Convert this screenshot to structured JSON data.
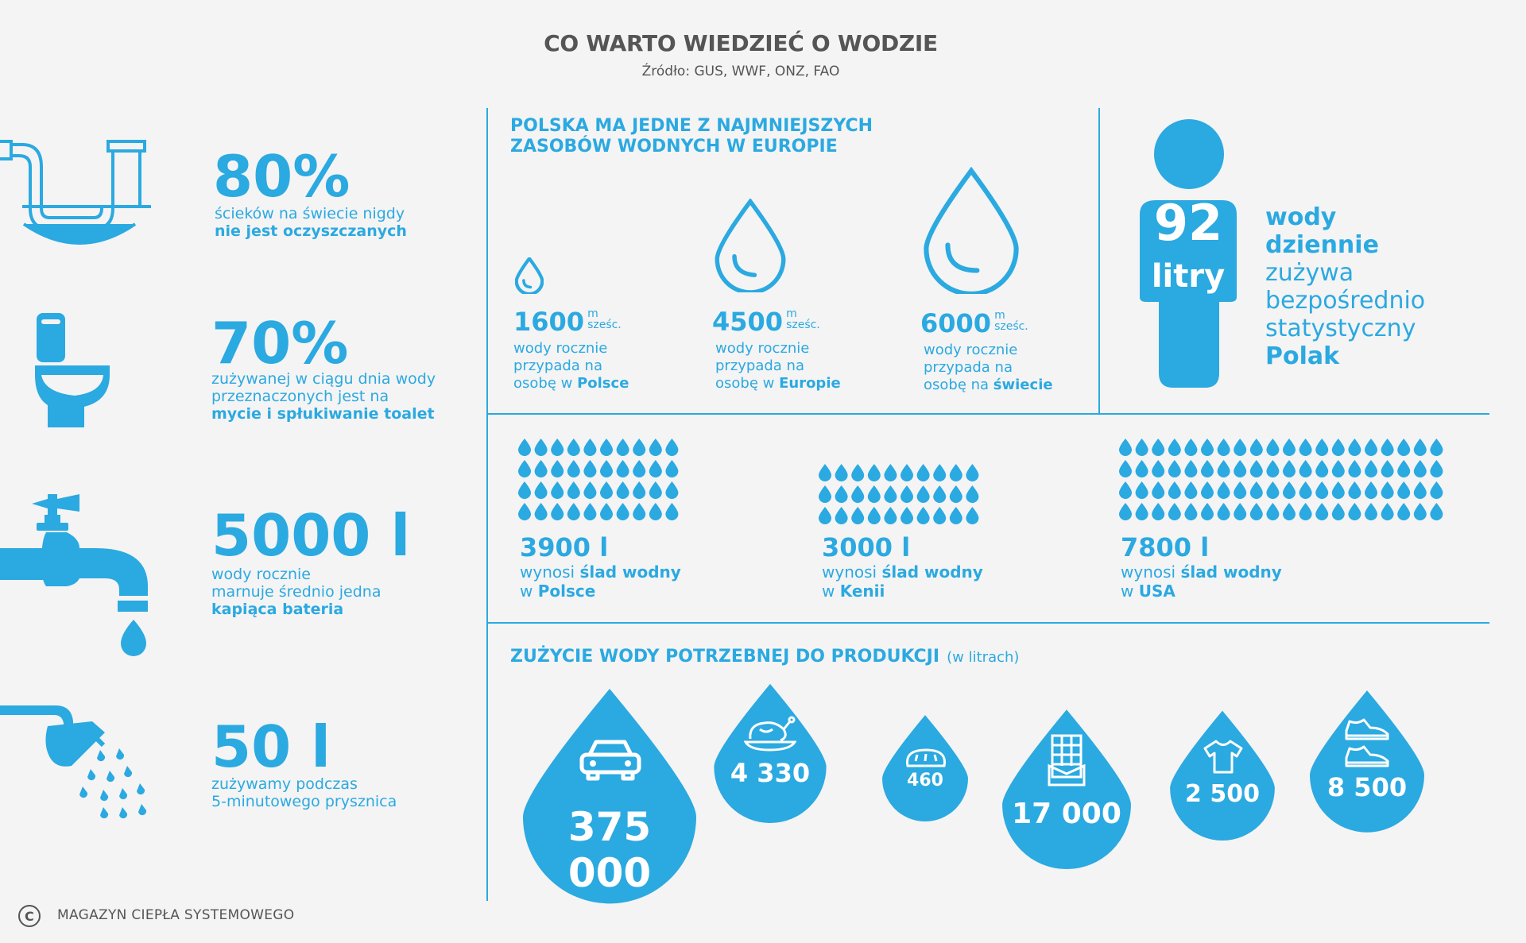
{
  "header": {
    "title": "CO WARTO WIEDZIEĆ O WODZIE",
    "source": "Źródło: GUS, WWF, ONZ, FAO"
  },
  "left_stats": [
    {
      "value": "80%",
      "line1": "ścieków na świecie nigdy",
      "bold": "nie jest oczyszczanych",
      "icon": "pipe-icon"
    },
    {
      "value": "70%",
      "line1": "zużywanej w ciągu dnia wody",
      "line2": "przeznaczonych jest na",
      "bold": "mycie i spłukiwanie toalet",
      "icon": "toilet-icon"
    },
    {
      "value": "5000 l",
      "line1": "wody rocznie",
      "line2": "marnuje średnio jedna",
      "bold": "kapiąca bateria",
      "icon": "faucet-icon"
    },
    {
      "value": "50 l",
      "line1": "zużywamy podczas",
      "line2": "5-minutowego prysznica",
      "icon": "shower-icon"
    }
  ],
  "resources": {
    "heading_line1": "POLSKA MA JEDNE Z NAJMNIEJSZYCH",
    "heading_line2": "ZASOBÓW WODNYCH W EUROPIE",
    "items": [
      {
        "value": "1600",
        "unit_top": "m",
        "unit_bottom": "sześc.",
        "line1": "wody rocznie",
        "line2": "przypada na",
        "prefix": "osobę w ",
        "bold": "Polsce"
      },
      {
        "value": "4500",
        "unit_top": "m",
        "unit_bottom": "sześc.",
        "line1": "wody rocznie",
        "line2": "przypada na",
        "prefix": "osobę w ",
        "bold": "Europie"
      },
      {
        "value": "6000",
        "unit_top": "m",
        "unit_bottom": "sześc.",
        "line1": "wody rocznie",
        "line2": "przypada na",
        "prefix": "osobę na ",
        "bold": "świecie"
      }
    ]
  },
  "person": {
    "value": "92",
    "unit": "litry",
    "lines": [
      {
        "text": "wody",
        "bold": true
      },
      {
        "text": "dziennie",
        "bold": true
      },
      {
        "text": "zużywa",
        "bold": false
      },
      {
        "text": "bezpośrednio",
        "bold": false
      },
      {
        "text": "statystyczny",
        "bold": false
      },
      {
        "text": "Polak",
        "bold": true
      }
    ]
  },
  "footprint": [
    {
      "value": "3900 l",
      "prefix": "wynosi ",
      "bold": "ślad wodny",
      "place_prefix": "w ",
      "place": "Polsce"
    },
    {
      "value": "3000 l",
      "prefix": "wynosi ",
      "bold": "ślad wodny",
      "place_prefix": "w ",
      "place": "Kenii"
    },
    {
      "value": "7800 l",
      "prefix": "wynosi ",
      "bold": "ślad wodny",
      "place_prefix": "w ",
      "place": "USA"
    }
  ],
  "production": {
    "heading": "ZUŻYCIE WODY POTRZEBNEJ DO PRODUKCJI",
    "heading_note": "(w litrach)",
    "items": [
      {
        "value": "375 000",
        "icon": "car-icon"
      },
      {
        "value": "4 330",
        "icon": "chicken-icon"
      },
      {
        "value": "460",
        "icon": "bread-icon"
      },
      {
        "value": "17 000",
        "icon": "chocolate-icon"
      },
      {
        "value": "2 500",
        "icon": "tshirt-icon"
      },
      {
        "value": "8 500",
        "icon": "shoes-icon"
      }
    ]
  },
  "footer": {
    "logo": "C",
    "text": "MAGAZYN CIEPŁA SYSTEMOWEGO"
  },
  "colors": {
    "accent": "#2ba9e1",
    "text_dark": "#555555",
    "background": "#f4f4f4"
  }
}
